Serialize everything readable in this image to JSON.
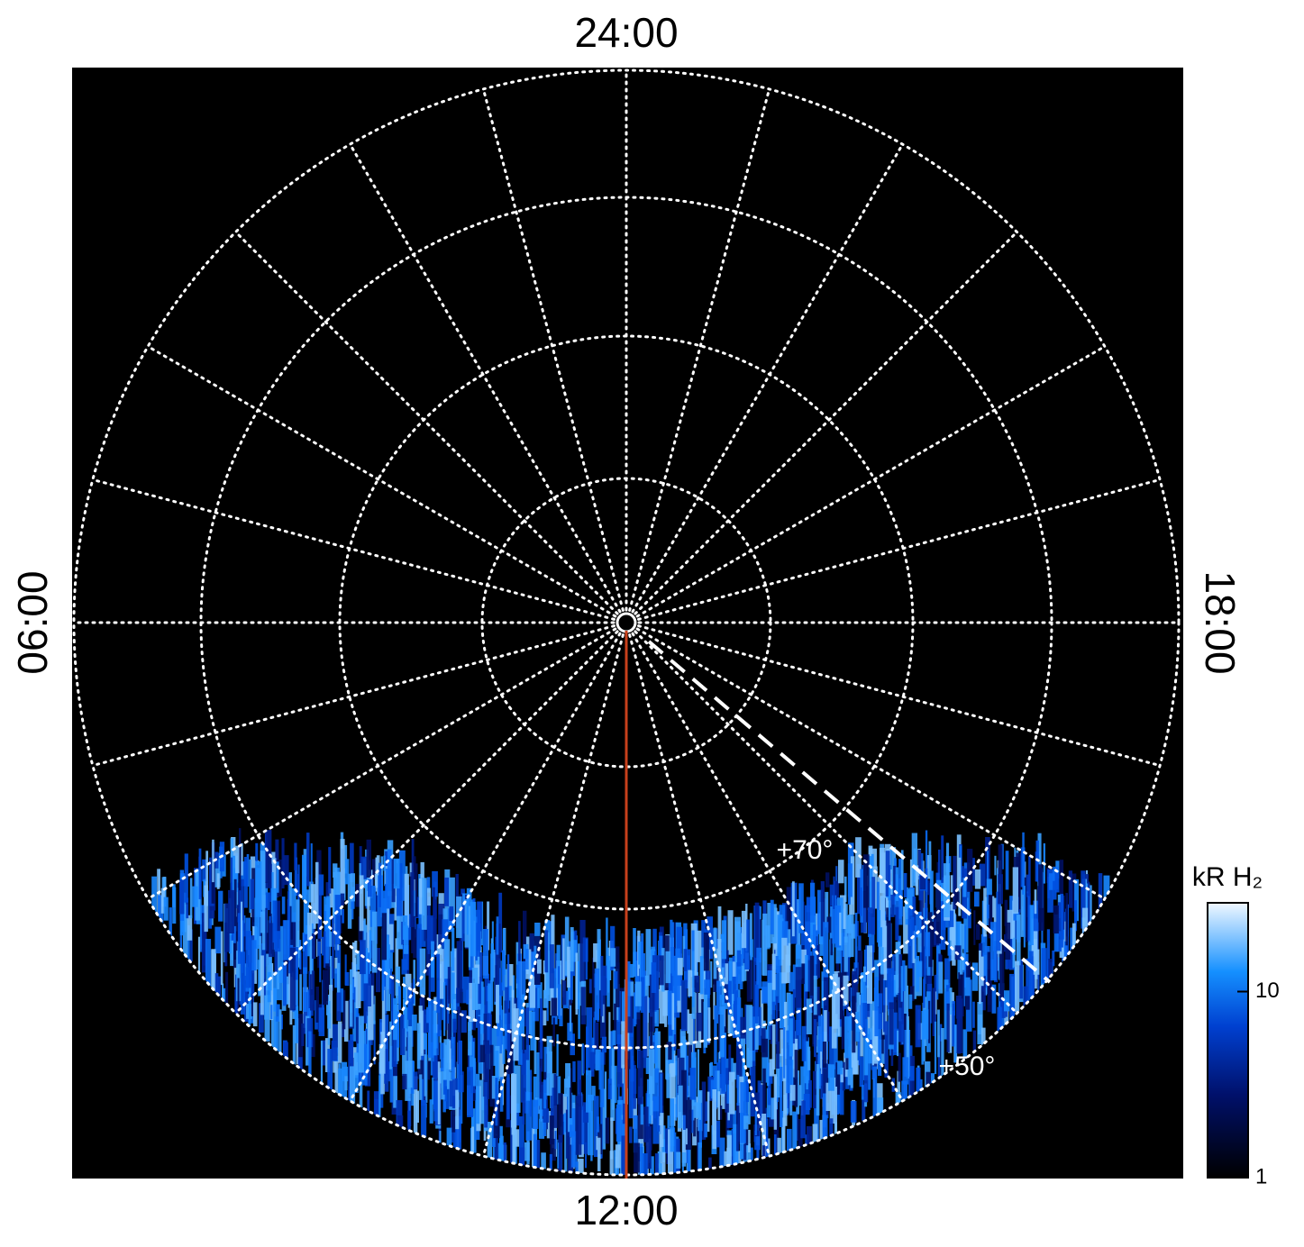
{
  "chart_data": {
    "type": "polar-map",
    "time_labels": {
      "top": "24:00",
      "left": "06:00",
      "bottom": "12:00",
      "right": "18:00"
    },
    "latitude_labels": [
      "+70°",
      "+50°"
    ],
    "colorbar": {
      "title": "kR H₂",
      "log": true,
      "lim": [
        1,
        30
      ],
      "ticks": [
        1,
        10
      ]
    }
  }
}
